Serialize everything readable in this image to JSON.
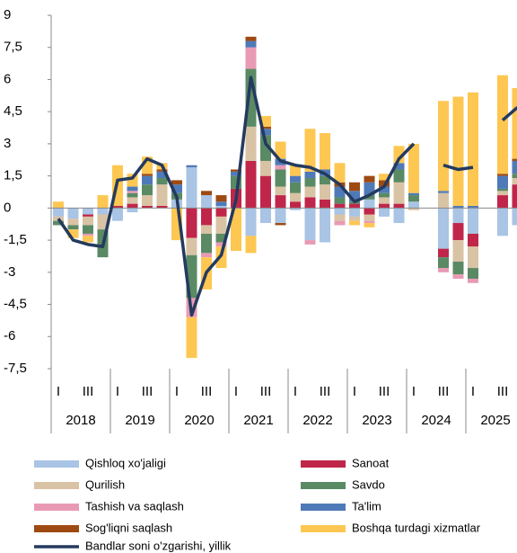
{
  "chart_data": {
    "type": "stacked_bar_line",
    "categories": [
      "I",
      null,
      "III",
      null,
      "I",
      null,
      "III",
      null,
      "I",
      null,
      "III",
      null,
      "I",
      null,
      "III",
      null,
      "I",
      null,
      "III",
      null,
      "I",
      null,
      "III",
      null,
      "I",
      null,
      "III",
      null,
      "I",
      null,
      "III",
      null
    ],
    "years": [
      "2018",
      "2019",
      "2020",
      "2021",
      "2022",
      "2023",
      "2024",
      "2025"
    ],
    "ylim": [
      -7.5,
      9
    ],
    "yticks": [
      {
        "value": -7.5,
        "label": "-7,5"
      },
      -6,
      {
        "value": -4.5,
        "label": "-4,5"
      },
      -3,
      {
        "value": -1.5,
        "label": "-1,5"
      },
      0,
      {
        "value": 1.5,
        "label": "1,5"
      },
      3,
      {
        "value": 4.5,
        "label": "4,5"
      },
      6,
      {
        "value": 7.5,
        "label": "7,5"
      },
      9
    ],
    "series": [
      {
        "name": "Qishloq xo'jaligi",
        "color": "#a9c4e4",
        "values": [
          -0.4,
          -0.5,
          -0.3,
          -0.3,
          -0.6,
          -0.2,
          0,
          0,
          0.4,
          1.9,
          0.6,
          0.1,
          0,
          -1.3,
          -0.7,
          -0.7,
          -0.1,
          -1.5,
          -1.6,
          -0.3,
          -0.4,
          0.4,
          -0.4,
          -0.7,
          0.3,
          null,
          -1.9,
          -0.7,
          -1.2,
          null,
          -1.3,
          -0.8
        ]
      },
      {
        "name": "Sanoat",
        "color": "#c0264a",
        "values": [
          0,
          0,
          -0.1,
          0,
          0.1,
          0.2,
          0.1,
          0.1,
          0,
          -1.4,
          -0.8,
          -0.4,
          0.9,
          2.2,
          1.5,
          0.6,
          0.3,
          0.5,
          0.4,
          0.2,
          0.2,
          -0.3,
          0.2,
          0.2,
          0,
          null,
          -0.4,
          -0.8,
          -0.6,
          null,
          0.6,
          1.1
        ]
      },
      {
        "name": "Qurilish",
        "color": "#d9c3a5",
        "values": [
          -0.2,
          -0.3,
          -0.4,
          -0.7,
          0,
          0.3,
          0.5,
          1.0,
          0,
          -0.8,
          -0.4,
          -0.8,
          0,
          1.6,
          0.7,
          0.4,
          0.4,
          0.5,
          0.7,
          -0.3,
          -0.2,
          -0.3,
          0.3,
          1.0,
          -0.1,
          null,
          0.7,
          -1.0,
          -1.0,
          null,
          0.2,
          0.3
        ]
      },
      {
        "name": "Savdo",
        "color": "#5a8a64",
        "values": [
          -0.2,
          -0.2,
          -0.4,
          -1.3,
          0,
          0.2,
          0.5,
          0.3,
          0.3,
          -2.0,
          -0.9,
          -0.4,
          0.6,
          2.7,
          1.2,
          0.8,
          0.5,
          0.4,
          0.4,
          0.3,
          0.1,
          0.2,
          0.2,
          0.6,
          0.3,
          null,
          -0.5,
          -0.6,
          -0.5,
          null,
          0.1,
          0.2
        ]
      },
      {
        "name": "Tashish va saqlash",
        "color": "#e89ab4",
        "values": [
          0,
          0,
          -0.1,
          0,
          0,
          0.1,
          0,
          0,
          0,
          -0.9,
          -0.2,
          -0.2,
          0,
          1.0,
          0,
          0.2,
          0,
          -0.2,
          0,
          -0.2,
          0,
          -0.1,
          0,
          0,
          0,
          null,
          -0.2,
          -0.2,
          -0.2,
          null,
          0,
          0
        ]
      },
      {
        "name": "Ta'lim",
        "color": "#4f7ab8",
        "values": [
          0,
          0,
          0,
          0,
          0,
          0.2,
          0.4,
          0.3,
          0.4,
          0.1,
          0,
          0.2,
          0.2,
          0.3,
          0.3,
          0.3,
          0.3,
          0.3,
          0.3,
          0.5,
          0.5,
          0.6,
          0.3,
          0.3,
          0.1,
          null,
          0.1,
          0.1,
          0.1,
          null,
          0.6,
          0.6
        ]
      },
      {
        "name": "Sog'liqni saqlash",
        "color": "#9e4a12",
        "values": [
          0,
          0,
          0,
          0,
          0,
          0,
          0.1,
          0.1,
          0.2,
          0,
          0.2,
          0.3,
          0.1,
          0.2,
          0.1,
          -0.1,
          0,
          0,
          0,
          0.2,
          0.4,
          0.3,
          0.3,
          0,
          0,
          null,
          0,
          0,
          0,
          null,
          0.1,
          0.1
        ]
      },
      {
        "name": "Boshqa turdagi xizmatlar",
        "color": "#fdc752",
        "values": [
          0.3,
          -0.4,
          -0.3,
          0.6,
          1.9,
          0.6,
          0.8,
          0.3,
          -1.5,
          -1.9,
          -1.5,
          -1.0,
          -2.0,
          -0.8,
          0.5,
          0.8,
          0.5,
          2.0,
          1.7,
          0.9,
          -0.2,
          -0.2,
          0.3,
          0.8,
          2.3,
          null,
          4.2,
          5.1,
          5.3,
          null,
          4.6,
          3.3
        ]
      }
    ],
    "line": {
      "name": "Bandlar soni o'zgarishi, yillik",
      "color": "#243a5e",
      "values": [
        -0.5,
        -1.5,
        -1.7,
        -1.8,
        1.3,
        1.4,
        2.3,
        2.0,
        0.5,
        -5.0,
        -3.0,
        -2.2,
        0.4,
        6.1,
        3.0,
        2.2,
        2.0,
        1.9,
        1.6,
        1.1,
        0.3,
        0.6,
        1.0,
        2.3,
        3.0,
        null,
        2.0,
        1.8,
        1.9,
        null,
        4.1,
        4.7
      ]
    }
  }
}
